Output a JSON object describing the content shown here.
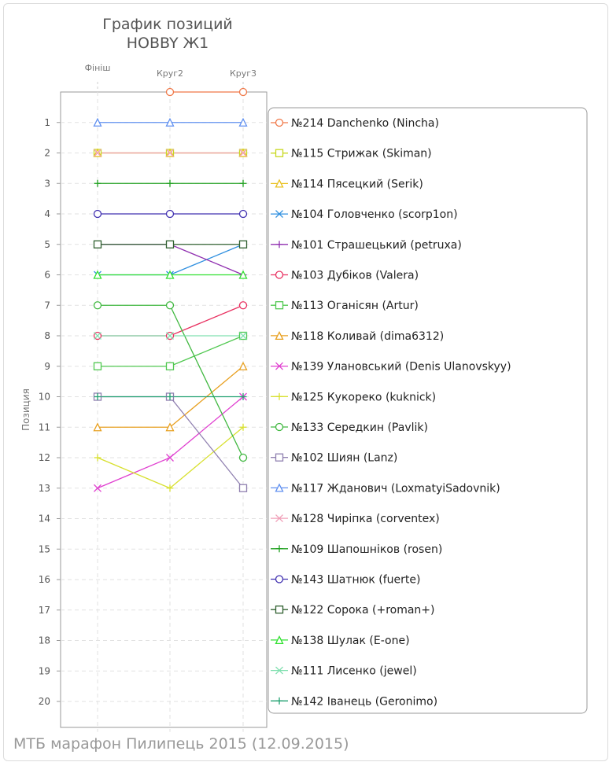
{
  "chart_data": {
    "type": "line",
    "title": [
      "График позиций",
      "HOBBY Ж1"
    ],
    "ylabel": "Позиция",
    "footer": "МТБ марафон Пилипець 2015 (12.09.2015)",
    "categories": [
      "Фініш",
      "Круг2",
      "Круг3"
    ],
    "y_ticks": [
      "1",
      "2",
      "3",
      "4",
      "5",
      "6",
      "7",
      "8",
      "9",
      "10",
      "11",
      "12",
      "13",
      "14",
      "15",
      "16",
      "17",
      "18",
      "19",
      "20"
    ],
    "ylim": [
      0,
      21
    ],
    "y_reversed": true,
    "grid": true,
    "legend_position": "right",
    "series": [
      {
        "name": "№214 Danchenko (Nincha)",
        "color": "#f07848",
        "marker": "circle",
        "values": [
          null,
          0,
          0
        ]
      },
      {
        "name": "№115 Стрижак (Skiman)",
        "color": "#c8d820",
        "marker": "square",
        "values": [
          2,
          2,
          2
        ]
      },
      {
        "name": "№114 Пясецкий (Serik)",
        "color": "#e8c020",
        "marker": "triangle",
        "values": [
          2,
          2,
          2
        ]
      },
      {
        "name": "№104 Головченко (scorp1on)",
        "color": "#3090e0",
        "marker": "x",
        "values": [
          6,
          6,
          5
        ]
      },
      {
        "name": "№101 Страшецький (petruxa)",
        "color": "#9030b0",
        "marker": "plus",
        "values": [
          5,
          5,
          6
        ]
      },
      {
        "name": "№103 Дубіков (Valera)",
        "color": "#e83060",
        "marker": "circle",
        "values": [
          8,
          8,
          7
        ]
      },
      {
        "name": "№113 Оганісян (Artur)",
        "color": "#50c850",
        "marker": "square",
        "values": [
          9,
          9,
          8
        ]
      },
      {
        "name": "№118 Коливай (dima6312)",
        "color": "#e8a020",
        "marker": "triangle",
        "values": [
          11,
          11,
          9
        ]
      },
      {
        "name": "№139 Улановський (Denis Ulanovskyy)",
        "color": "#e040d0",
        "marker": "x",
        "values": [
          13,
          12,
          10
        ]
      },
      {
        "name": "№125 Кукореко (kuknick)",
        "color": "#d8e030",
        "marker": "plus",
        "values": [
          12,
          13,
          11
        ]
      },
      {
        "name": "№133 Середкин (Pavlik)",
        "color": "#40b840",
        "marker": "circle",
        "values": [
          7,
          7,
          12
        ]
      },
      {
        "name": "№102 Шиян (Lanz)",
        "color": "#9080b0",
        "marker": "square",
        "values": [
          10,
          10,
          13
        ]
      },
      {
        "name": "№117 Жданович (LoxmatyiSadovnik)",
        "color": "#6090f0",
        "marker": "triangle",
        "values": [
          1,
          1,
          1
        ]
      },
      {
        "name": "№128 Чиріпка (corventex)",
        "color": "#f0a0b8",
        "marker": "x",
        "values": [
          2,
          2,
          2
        ]
      },
      {
        "name": "№109 Шапошніков (rosen)",
        "color": "#20a020",
        "marker": "plus",
        "values": [
          3,
          3,
          3
        ]
      },
      {
        "name": "№143 Шатнюк (fuerte)",
        "color": "#4030b0",
        "marker": "circle",
        "values": [
          4,
          4,
          4
        ]
      },
      {
        "name": "№122 Сорока (+roman+)",
        "color": "#306030",
        "marker": "square",
        "values": [
          5,
          5,
          5
        ]
      },
      {
        "name": "№138 Шулак (E-one)",
        "color": "#30e030",
        "marker": "triangle",
        "values": [
          6,
          6,
          6
        ]
      },
      {
        "name": "№111 Лисенко (jewel)",
        "color": "#80e0b0",
        "marker": "x",
        "values": [
          8,
          8,
          8
        ]
      },
      {
        "name": "№142 Іванець (Geronimo)",
        "color": "#20a070",
        "marker": "plus",
        "values": [
          10,
          10,
          10
        ]
      }
    ]
  }
}
